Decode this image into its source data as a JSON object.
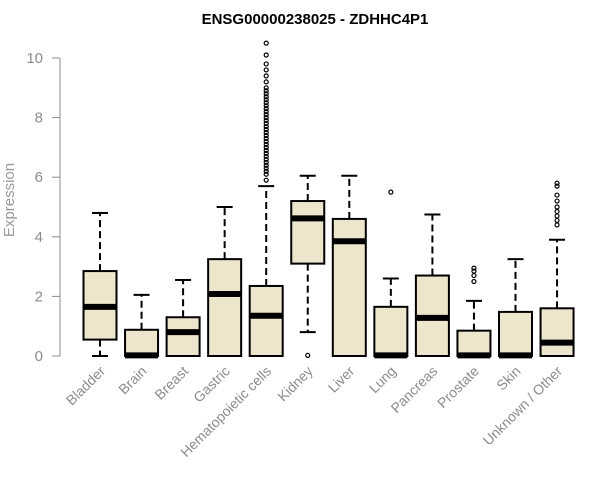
{
  "chart_data": {
    "type": "boxplot",
    "title": "ENSG00000238025 - ZDHHC4P1",
    "ylabel": "Expression",
    "xlabel": "",
    "ylim": [
      0,
      10.5
    ],
    "yticks": [
      0,
      2,
      4,
      6,
      8,
      10
    ],
    "grid": false,
    "box_color": "#ede6cc",
    "categories": [
      "Bladder",
      "Brain",
      "Breast",
      "Gastric",
      "Hematopoietic cells",
      "Kidney",
      "Liver",
      "Lung",
      "Pancreas",
      "Prostate",
      "Skin",
      "Unknown / Other"
    ],
    "boxes": [
      {
        "min": 0.0,
        "q1": 0.55,
        "median": 1.65,
        "q3": 2.85,
        "max": 4.8,
        "outliers": []
      },
      {
        "min": 0.0,
        "q1": 0.0,
        "median": 0.02,
        "q3": 0.88,
        "max": 2.05,
        "outliers": []
      },
      {
        "min": 0.0,
        "q1": 0.0,
        "median": 0.8,
        "q3": 1.3,
        "max": 2.55,
        "outliers": []
      },
      {
        "min": 0.0,
        "q1": 0.0,
        "median": 2.08,
        "q3": 3.25,
        "max": 5.0,
        "outliers": []
      },
      {
        "min": 0.0,
        "q1": 0.0,
        "median": 1.35,
        "q3": 2.35,
        "max": 5.7,
        "outliers": [
          5.9,
          6.1,
          6.2,
          6.3,
          6.4,
          6.5,
          6.6,
          6.7,
          6.8,
          6.9,
          7.0,
          7.1,
          7.2,
          7.3,
          7.4,
          7.5,
          7.6,
          7.7,
          7.8,
          7.9,
          8.0,
          8.1,
          8.2,
          8.3,
          8.4,
          8.5,
          8.6,
          8.7,
          8.8,
          8.9,
          9.0,
          9.2,
          9.4,
          9.6,
          9.8,
          10.1,
          10.5
        ]
      },
      {
        "min": 0.8,
        "q1": 3.1,
        "median": 4.62,
        "q3": 5.2,
        "max": 6.05,
        "outliers": [
          0.02
        ]
      },
      {
        "min": 0.0,
        "q1": 0.0,
        "median": 3.85,
        "q3": 4.6,
        "max": 6.05,
        "outliers": []
      },
      {
        "min": 0.0,
        "q1": 0.0,
        "median": 0.02,
        "q3": 1.65,
        "max": 2.6,
        "outliers": [
          5.5
        ]
      },
      {
        "min": 0.0,
        "q1": 0.0,
        "median": 1.28,
        "q3": 2.7,
        "max": 4.75,
        "outliers": []
      },
      {
        "min": 0.0,
        "q1": 0.0,
        "median": 0.02,
        "q3": 0.85,
        "max": 1.85,
        "outliers": [
          2.5,
          2.7,
          2.85,
          2.95
        ]
      },
      {
        "min": 0.0,
        "q1": 0.0,
        "median": 0.02,
        "q3": 1.48,
        "max": 3.25,
        "outliers": []
      },
      {
        "min": 0.0,
        "q1": 0.0,
        "median": 0.45,
        "q3": 1.6,
        "max": 3.9,
        "outliers": [
          4.4,
          4.55,
          4.7,
          4.85,
          5.0,
          5.2,
          5.4,
          5.7,
          5.8
        ]
      }
    ]
  }
}
